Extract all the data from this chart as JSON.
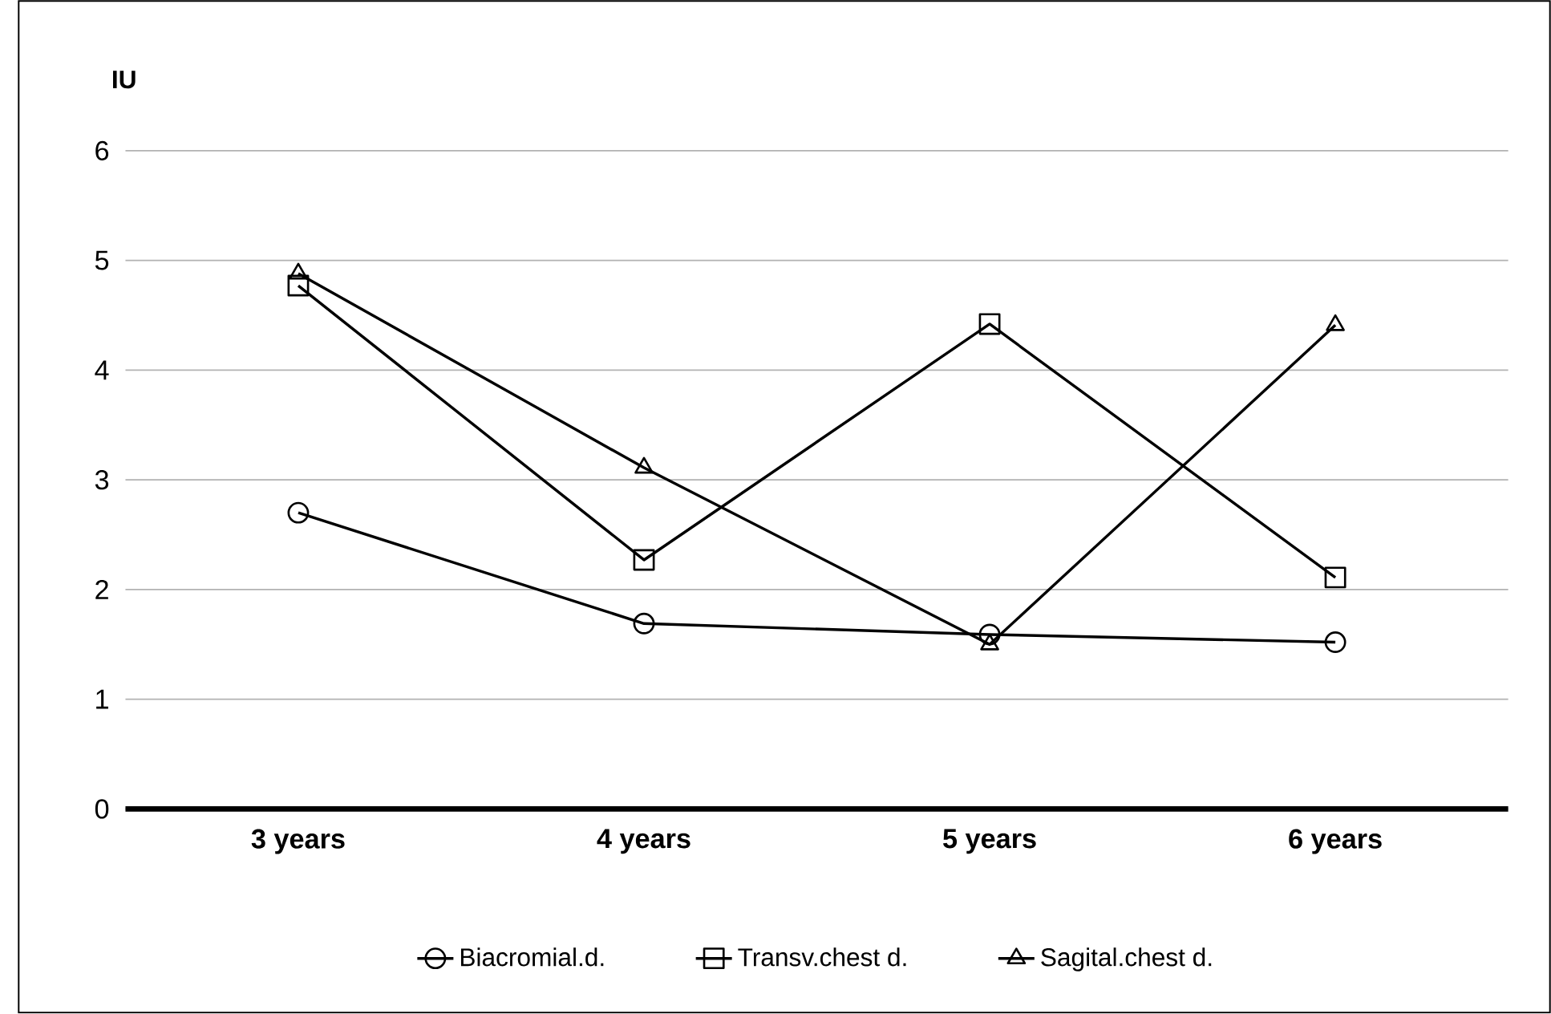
{
  "chart_data": {
    "type": "line",
    "ylabel": "IU",
    "categories": [
      "3 years",
      "4 years",
      "5 years",
      "6 years"
    ],
    "series": [
      {
        "name": "Biacromial.d.",
        "color": "#000000",
        "marker": "circle",
        "values": [
          2.7,
          1.69,
          1.59,
          1.52
        ]
      },
      {
        "name": "Transv.chest d.",
        "color": "#000000",
        "marker": "square",
        "values": [
          4.77,
          2.27,
          4.42,
          2.11
        ]
      },
      {
        "name": "Sagital.chest d.",
        "color": "#000000",
        "marker": "triangle",
        "values": [
          4.88,
          3.11,
          1.5,
          4.41
        ]
      }
    ],
    "ylim": [
      0,
      6
    ],
    "yticks": [
      0,
      1,
      2,
      3,
      4,
      5,
      6
    ],
    "grid": "y",
    "legend": "bottom"
  }
}
